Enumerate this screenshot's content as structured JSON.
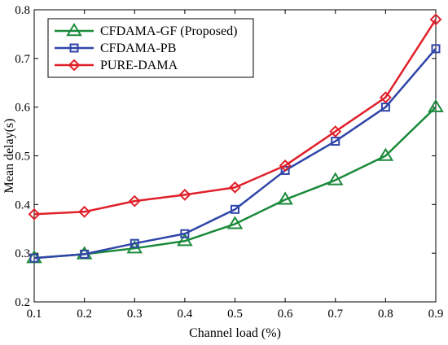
{
  "chart_data": {
    "type": "line",
    "xlabel": "Channel load (%)",
    "ylabel": "Mean delay(s)",
    "xlim": [
      0.1,
      0.9
    ],
    "ylim": [
      0.2,
      0.8
    ],
    "xticks": [
      "0.1",
      "0.2",
      "0.3",
      "0.4",
      "0.5",
      "0.6",
      "0.7",
      "0.8",
      "0.9"
    ],
    "yticks": [
      "0.2",
      "0.3",
      "0.4",
      "0.5",
      "0.6",
      "0.7",
      "0.8"
    ],
    "grid": false,
    "legend_position": "top-left",
    "x": [
      0.1,
      0.2,
      0.3,
      0.4,
      0.5,
      0.6,
      0.7,
      0.8,
      0.9
    ],
    "series": [
      {
        "name": "CFDAMA-GF (Proposed)",
        "color": "#1a8a3a",
        "marker": "triangle",
        "values": [
          0.29,
          0.298,
          0.31,
          0.325,
          0.36,
          0.41,
          0.45,
          0.5,
          0.6
        ]
      },
      {
        "name": "CFDAMA-PB",
        "color": "#2f45a8",
        "marker": "square",
        "values": [
          0.29,
          0.298,
          0.32,
          0.34,
          0.39,
          0.47,
          0.53,
          0.6,
          0.72
        ]
      },
      {
        "name": "PURE-DAMA",
        "color": "#e0202a",
        "marker": "diamond",
        "values": [
          0.38,
          0.385,
          0.407,
          0.42,
          0.435,
          0.48,
          0.55,
          0.62,
          0.78
        ]
      }
    ]
  }
}
